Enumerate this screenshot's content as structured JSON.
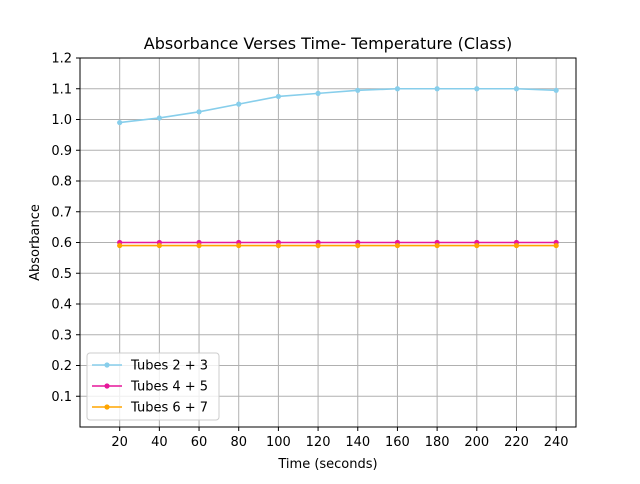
{
  "chart_data": {
    "type": "line",
    "title": "Absorbance Verses Time- Temperature (Class)",
    "xlabel": "Time (seconds)",
    "ylabel": "Absorbance",
    "x": [
      20,
      40,
      60,
      80,
      100,
      120,
      140,
      160,
      180,
      200,
      220,
      240
    ],
    "xlim": [
      0,
      250
    ],
    "ylim": [
      0.0,
      1.2
    ],
    "xticks": [
      "20",
      "40",
      "60",
      "80",
      "100",
      "120",
      "140",
      "160",
      "180",
      "200",
      "220",
      "240"
    ],
    "yticks": [
      "0.1",
      "0.2",
      "0.3",
      "0.4",
      "0.5",
      "0.6",
      "0.7",
      "0.8",
      "0.9",
      "1.0",
      "1.1",
      "1.2"
    ],
    "grid": true,
    "legend_position": "bottom-left",
    "series": [
      {
        "name": "Tubes 2 + 3",
        "color": "#87ceeb",
        "values": [
          0.99,
          1.005,
          1.025,
          1.05,
          1.075,
          1.085,
          1.095,
          1.1,
          1.1,
          1.1,
          1.1,
          1.095
        ]
      },
      {
        "name": "Tubes 4 + 5",
        "color": "#e6179a",
        "values": [
          0.6,
          0.6,
          0.6,
          0.6,
          0.6,
          0.6,
          0.6,
          0.6,
          0.6,
          0.6,
          0.6,
          0.6
        ]
      },
      {
        "name": "Tubes 6 + 7",
        "color": "#ffa500",
        "values": [
          0.59,
          0.59,
          0.59,
          0.59,
          0.59,
          0.59,
          0.59,
          0.59,
          0.59,
          0.59,
          0.59,
          0.59
        ]
      }
    ]
  }
}
